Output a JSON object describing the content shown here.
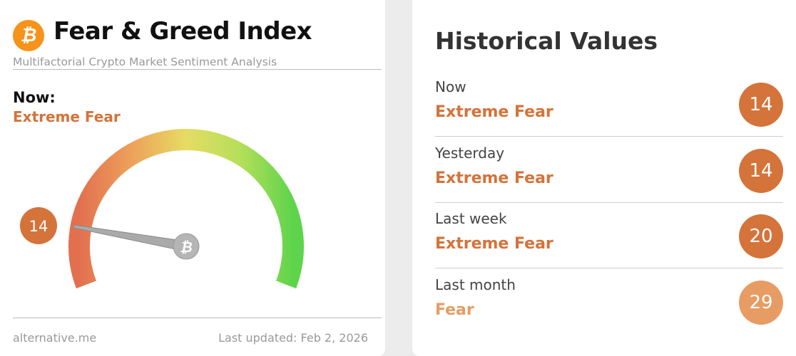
{
  "header": {
    "logo_icon": "bitcoin-icon",
    "title": "Fear & Greed Index",
    "subtitle": "Multifactorial Crypto Market Sentiment Analysis"
  },
  "now": {
    "label": "Now:",
    "classification": "Extreme Fear",
    "value": 14
  },
  "gauge": {
    "min": 0,
    "max": 100,
    "value": 14,
    "value_label": "14",
    "center_icon": "bitcoin-icon"
  },
  "footer": {
    "source": "alternative.me",
    "updated": "Last updated: Feb 2, 2026"
  },
  "historical": {
    "title": "Historical Values",
    "rows": [
      {
        "period": "Now",
        "classification": "Extreme Fear",
        "value": "14",
        "color": "#d4733a"
      },
      {
        "period": "Yesterday",
        "classification": "Extreme Fear",
        "value": "14",
        "color": "#d4733a"
      },
      {
        "period": "Last week",
        "classification": "Extreme Fear",
        "value": "20",
        "color": "#d4733a"
      },
      {
        "period": "Last month",
        "classification": "Fear",
        "value": "29",
        "color": "#e69c63"
      }
    ]
  },
  "colors": {
    "extreme_fear": "#d4733a",
    "fear": "#e69c63",
    "bitcoin": "#f7931a"
  }
}
